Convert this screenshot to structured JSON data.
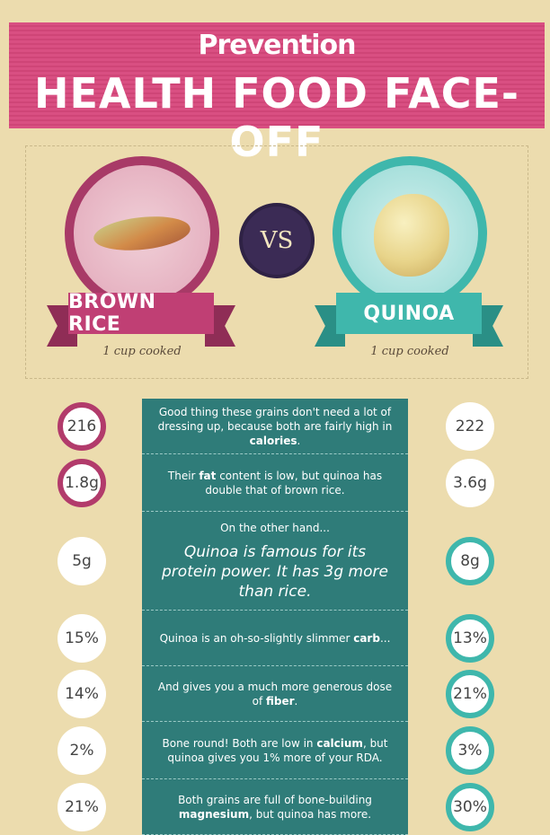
{
  "header": {
    "brand": "Prevention",
    "title": "HEALTH FOOD FACE-OFF"
  },
  "versus": {
    "left": {
      "name": "BROWN RICE",
      "serving": "1 cup cooked",
      "color": "#c03f74"
    },
    "vs_label": "VS",
    "right": {
      "name": "QUINOA",
      "serving": "1 cup cooked",
      "color": "#3fb7ac"
    }
  },
  "rows": [
    {
      "rice": "216",
      "quinoa": "222",
      "winner": "rice",
      "text_pre": "Good thing these grains don't need a lot of dressing up, because both are fairly high in ",
      "text_bold": "calories",
      "text_post": "."
    },
    {
      "rice": "1.8g",
      "quinoa": "3.6g",
      "winner": "rice",
      "text_pre": "Their ",
      "text_bold": "fat",
      "text_post": " content is low, but quinoa has double that of brown rice."
    },
    {
      "rice": "5g",
      "quinoa": "8g",
      "winner": "quinoa",
      "lead": "On the other hand...",
      "quote": "Quinoa is famous for its protein power. It has 3g more than rice."
    },
    {
      "rice": "15%",
      "quinoa": "13%",
      "winner": "quinoa",
      "text_pre": "Quinoa is an oh-so-slightly slimmer ",
      "text_bold": "carb",
      "text_post": "..."
    },
    {
      "rice": "14%",
      "quinoa": "21%",
      "winner": "quinoa",
      "text_pre": "And gives you a much more generous dose of ",
      "text_bold": "fiber",
      "text_post": "."
    },
    {
      "rice": "2%",
      "quinoa": "3%",
      "winner": "quinoa",
      "text_pre": "Bone round! Both are low in ",
      "text_bold": "calcium",
      "text_post": ", but quinoa gives you 1% more of your RDA."
    },
    {
      "rice": "21%",
      "quinoa": "30%",
      "winner": "quinoa",
      "text_pre": "Both grains are full of bone-building ",
      "text_bold": "magnesium",
      "text_post": ", but quinoa has more."
    }
  ]
}
